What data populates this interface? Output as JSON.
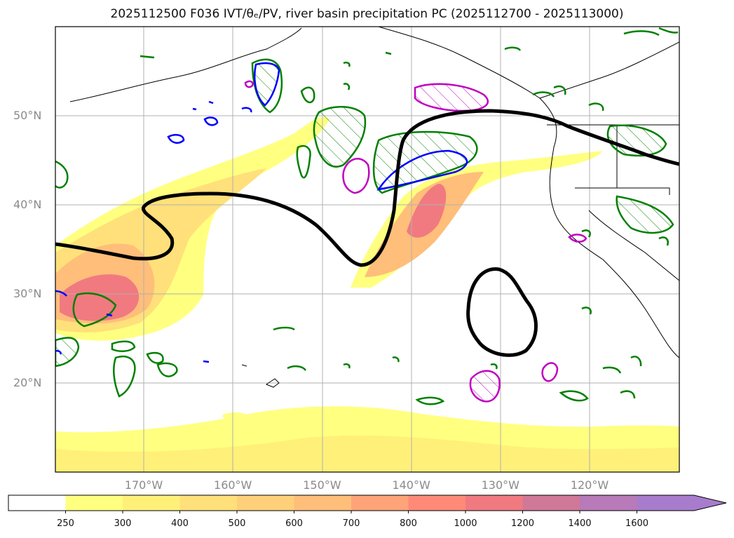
{
  "title": "2025112500 F036 IVT/θₑ/PV, river basin precipitation PC (2025112700 - 2025113000)",
  "lat_labels": [
    {
      "value": 50,
      "text": "50°N"
    },
    {
      "value": 40,
      "text": "40°N"
    },
    {
      "value": 30,
      "text": "30°N"
    },
    {
      "value": 20,
      "text": "20°N"
    }
  ],
  "lon_labels": [
    {
      "value": -170,
      "text": "170°W"
    },
    {
      "value": -160,
      "text": "160°W"
    },
    {
      "value": -150,
      "text": "150°W"
    },
    {
      "value": -140,
      "text": "140°W"
    },
    {
      "value": -130,
      "text": "130°W"
    },
    {
      "value": -120,
      "text": "120°W"
    }
  ],
  "colorbar": {
    "levels": [
      "250",
      "300",
      "400",
      "500",
      "600",
      "700",
      "800",
      "1000",
      "1200",
      "1400",
      "1600"
    ],
    "colors": [
      "#ffff80",
      "#fff07a",
      "#ffe07a",
      "#ffd07a",
      "#ffbe7a",
      "#ffa478",
      "#ff8a78",
      "#f07a80",
      "#d07898",
      "#b87ab8",
      "#a87ccc"
    ],
    "extend": "max"
  },
  "colors": {
    "theta_contour": "#008000",
    "pv_contour": "#0000ff",
    "magenta_contour": "#c000c0",
    "ivt_contour": "#000000",
    "grid": "#b0b0b0",
    "coastline": "#000000"
  }
}
